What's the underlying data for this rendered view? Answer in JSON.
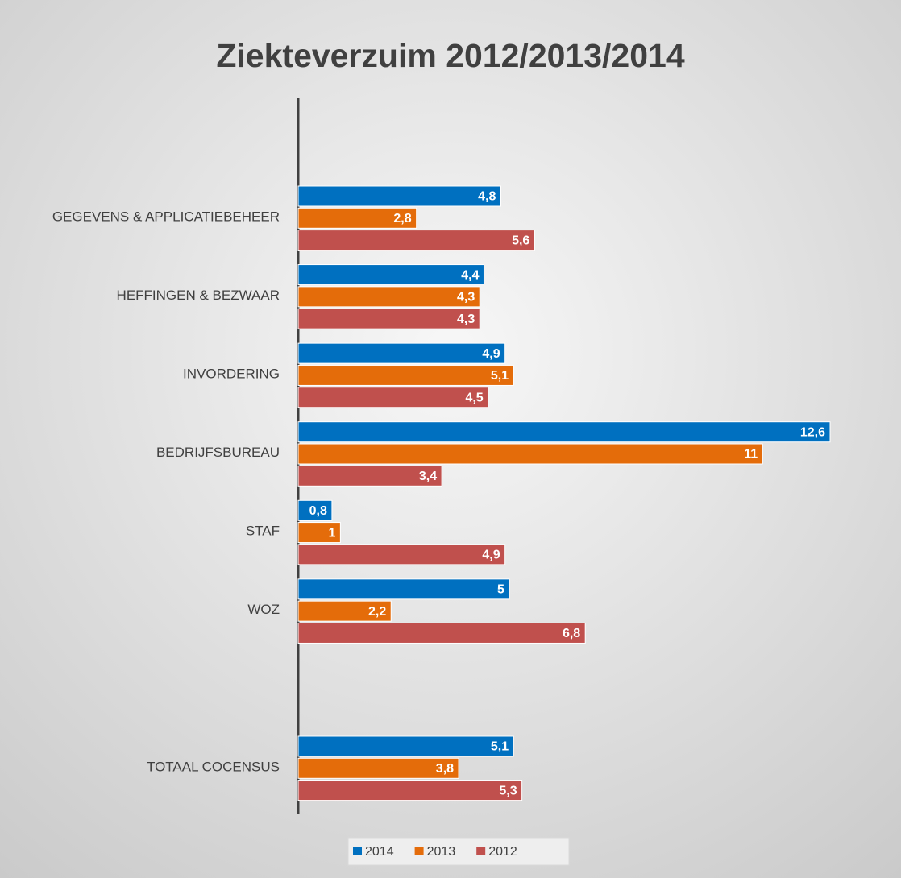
{
  "chart_data": {
    "type": "bar",
    "orientation": "horizontal",
    "title": "Ziekteverzuim 2012/2013/2014",
    "categories": [
      "GEGEVENS & APPLICATIEBEHEER",
      "HEFFINGEN & BEZWAAR",
      "INVORDERING",
      "BEDRIJFSBUREAU",
      "STAF",
      "WOZ",
      null,
      "TOTAAL COCENSUS"
    ],
    "series": [
      {
        "name": "2014",
        "color": "#0070c0",
        "values": [
          4.8,
          4.4,
          4.9,
          12.6,
          0.8,
          5,
          null,
          5.1
        ],
        "value_labels": [
          "4,8",
          "4,4",
          "4,9",
          "12,6",
          "0,8",
          "5",
          null,
          "5,1"
        ]
      },
      {
        "name": "2013",
        "color": "#e46c0a",
        "values": [
          2.8,
          4.3,
          5.1,
          11,
          1,
          2.2,
          null,
          3.8
        ],
        "value_labels": [
          "2,8",
          "4,3",
          "5,1",
          "11",
          "1",
          "2,2",
          null,
          "3,8"
        ]
      },
      {
        "name": "2012",
        "color": "#c0504d",
        "values": [
          5.6,
          4.3,
          4.5,
          3.4,
          4.9,
          6.8,
          null,
          5.3
        ],
        "value_labels": [
          "5,6",
          "4,3",
          "4,5",
          "3,4",
          "4,9",
          "6,8",
          null,
          "5,3"
        ]
      }
    ],
    "xlim": [
      0,
      12.6
    ],
    "grid": false,
    "legend": "bottom"
  }
}
